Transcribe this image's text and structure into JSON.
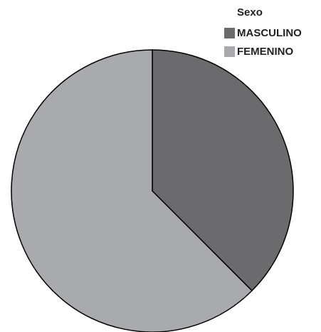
{
  "chart_data": {
    "type": "pie",
    "legend_title": "Sexo",
    "categories": [
      "MASCULINO",
      "FEMENINO"
    ],
    "values": [
      37.5,
      62.5
    ],
    "colors": [
      "#6b6b6d",
      "#a9aaae"
    ],
    "legend": "top-right"
  }
}
